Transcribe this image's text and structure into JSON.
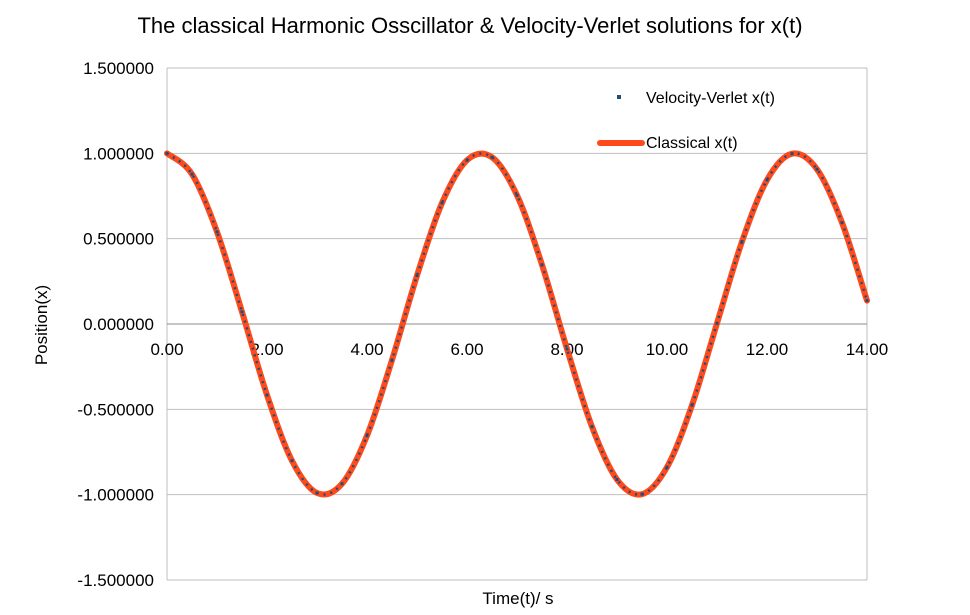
{
  "chart_data": {
    "type": "line",
    "title": "The classical Harmonic Osscillator & Velocity-Verlet solutions for x(t)",
    "xlabel": "Time(t)/ s",
    "ylabel": "Position(x)",
    "xlim": [
      0,
      14
    ],
    "ylim": [
      -1.5,
      1.5
    ],
    "x_ticks": [
      "0.00",
      "2.00",
      "4.00",
      "6.00",
      "8.00",
      "10.00",
      "12.00",
      "14.00"
    ],
    "y_ticks": [
      "1.500000",
      "1.000000",
      "0.500000",
      "0.000000",
      "-0.500000",
      "-1.000000",
      "-1.500000"
    ],
    "grid": "horizontal",
    "legend_position": "top-right",
    "x": [
      0.0,
      0.5,
      1.0,
      1.5,
      2.0,
      2.5,
      3.0,
      3.5,
      4.0,
      4.5,
      5.0,
      5.5,
      6.0,
      6.5,
      7.0,
      7.5,
      8.0,
      8.5,
      9.0,
      9.5,
      10.0,
      10.5,
      11.0,
      11.5,
      12.0,
      12.5,
      13.0,
      13.5,
      14.0
    ],
    "series": [
      {
        "name": "Velocity-Verlet x(t)",
        "style": "dotted-markers",
        "color": "#1f4e79",
        "values": [
          1.0,
          0.878,
          0.54,
          0.071,
          -0.416,
          -0.801,
          -0.99,
          -0.936,
          -0.654,
          -0.211,
          0.284,
          0.709,
          0.96,
          0.977,
          0.754,
          0.347,
          -0.146,
          -0.602,
          -0.911,
          -0.997,
          -0.839,
          -0.476,
          0.004,
          0.483,
          0.844,
          0.998,
          0.907,
          0.594,
          0.137
        ]
      },
      {
        "name": "Classical x(t)",
        "style": "thick-line",
        "color": "#ff4a1c",
        "values": [
          1.0,
          0.878,
          0.54,
          0.071,
          -0.416,
          -0.801,
          -0.99,
          -0.936,
          -0.654,
          -0.211,
          0.284,
          0.709,
          0.96,
          0.977,
          0.754,
          0.347,
          -0.146,
          -0.602,
          -0.911,
          -0.997,
          -0.839,
          -0.476,
          0.004,
          0.483,
          0.844,
          0.998,
          0.907,
          0.594,
          0.137
        ]
      }
    ]
  }
}
